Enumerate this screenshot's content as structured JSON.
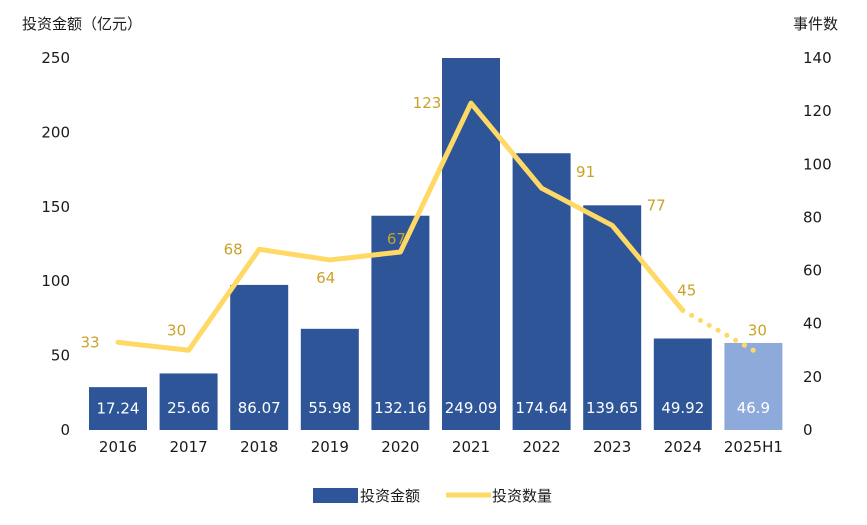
{
  "chart_data": {
    "type": "bar",
    "categories": [
      "2016",
      "2017",
      "2018",
      "2019",
      "2020",
      "2021",
      "2022",
      "2023",
      "2024",
      "2025H1"
    ],
    "series": [
      {
        "name": "投资金额",
        "type": "bar",
        "axis": "left",
        "values": [
          17.24,
          25.66,
          86.07,
          55.98,
          132.16,
          249.09,
          174.64,
          139.65,
          49.92,
          46.9
        ],
        "plotted_values": [
          28.8,
          38.0,
          97.5,
          68.0,
          144.0,
          250.0,
          186.0,
          151.0,
          61.5,
          58.5
        ],
        "data_labels": [
          "17.24",
          "25.66",
          "86.07",
          "55.98",
          "132.16",
          "249.09",
          "174.64",
          "139.65",
          "49.92",
          "46.9"
        ],
        "color": "#2e5597",
        "highlight_color": "#8eaadb",
        "highlight_index": 9
      },
      {
        "name": "投资数量",
        "type": "line",
        "axis": "right",
        "values": [
          33,
          30,
          68,
          64,
          67,
          123,
          91,
          77,
          45,
          30
        ],
        "data_labels": [
          "33",
          "30",
          "68",
          "64",
          "67",
          "123",
          "91",
          "77",
          "45",
          "30"
        ],
        "color": "#ffd966",
        "label_color": "#c9a227",
        "dotted_from_index": 8
      }
    ],
    "y_left": {
      "label": "投资金额（亿元）",
      "ticks": [
        0,
        50,
        100,
        150,
        200,
        250
      ],
      "ylim": [
        0,
        250
      ]
    },
    "y_right": {
      "label": "事件数",
      "ticks": [
        0,
        20,
        40,
        60,
        80,
        100,
        120,
        140
      ],
      "ylim": [
        0,
        140
      ]
    },
    "grid": false,
    "legend_position": "bottom-center"
  }
}
